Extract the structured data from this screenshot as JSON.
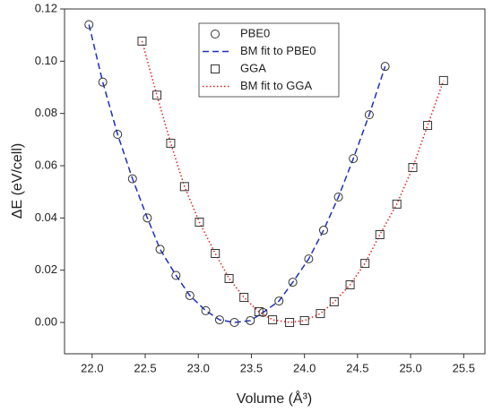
{
  "chart_data": {
    "type": "scatter",
    "xlabel": "Volume (Å³)",
    "ylabel": "ΔE (eV/cell)",
    "xlim": [
      21.74,
      25.7
    ],
    "ylim": [
      -0.012,
      0.12
    ],
    "xticks": [
      {
        "value": 22,
        "label": "22.0"
      },
      22.5,
      {
        "value": 23,
        "label": "23.0"
      },
      23.5,
      {
        "value": 24,
        "label": "24.0"
      },
      24.5,
      {
        "value": 25,
        "label": "25.0"
      },
      25.5
    ],
    "yticks": [
      {
        "value": 0,
        "label": "0.00"
      },
      0.02,
      0.04,
      0.06,
      0.08,
      {
        "value": 0.1,
        "label": "0.10"
      },
      0.12
    ],
    "legend": "top",
    "series": [
      {
        "name": "PBE0",
        "mark": "circle",
        "color": "#333333",
        "x": [
          21.97,
          22.1,
          22.24,
          22.38,
          22.52,
          22.64,
          22.79,
          22.92,
          23.07,
          23.2,
          23.34,
          23.49,
          23.61,
          23.76,
          23.89,
          24.04,
          24.18,
          24.32,
          24.46,
          24.61,
          24.76
        ],
        "values": [
          0.114,
          0.092,
          0.072,
          0.055,
          0.04,
          0.028,
          0.018,
          0.0103,
          0.0045,
          0.001,
          0.0,
          0.0007,
          0.0038,
          0.0082,
          0.0154,
          0.0243,
          0.0353,
          0.048,
          0.0627,
          0.0795,
          0.098
        ]
      },
      {
        "name": "BM fit to PBE0",
        "mark": "dashed",
        "color": "#1f2fbf",
        "x": [
          21.97,
          22.1,
          22.24,
          22.38,
          22.52,
          22.64,
          22.79,
          22.92,
          23.07,
          23.2,
          23.34,
          23.49,
          23.61,
          23.76,
          23.89,
          24.04,
          24.18,
          24.32,
          24.46,
          24.61,
          24.76
        ],
        "values": [
          0.114,
          0.092,
          0.072,
          0.055,
          0.04,
          0.028,
          0.018,
          0.0103,
          0.0045,
          0.001,
          0.0,
          0.0007,
          0.0038,
          0.0082,
          0.0154,
          0.0243,
          0.0353,
          0.048,
          0.0627,
          0.0795,
          0.098
        ]
      },
      {
        "name": "GGA",
        "mark": "square",
        "color": "#333333",
        "x": [
          22.47,
          22.61,
          22.74,
          22.87,
          23.01,
          23.16,
          23.29,
          23.43,
          23.57,
          23.7,
          23.86,
          24.0,
          24.15,
          24.28,
          24.43,
          24.57,
          24.71,
          24.87,
          25.02,
          25.16,
          25.31
        ],
        "values": [
          0.1077,
          0.087,
          0.0686,
          0.052,
          0.0384,
          0.0264,
          0.0168,
          0.0096,
          0.0041,
          0.001,
          0.0,
          0.0007,
          0.0034,
          0.0079,
          0.0144,
          0.0226,
          0.0336,
          0.0453,
          0.0593,
          0.0754,
          0.0926
        ]
      },
      {
        "name": "BM fit to GGA",
        "mark": "dotted",
        "color": "#e0201b",
        "x": [
          22.47,
          22.61,
          22.74,
          22.87,
          23.01,
          23.16,
          23.29,
          23.43,
          23.57,
          23.7,
          23.86,
          24.0,
          24.15,
          24.28,
          24.43,
          24.57,
          24.71,
          24.87,
          25.02,
          25.16,
          25.31
        ],
        "values": [
          0.1077,
          0.087,
          0.0686,
          0.052,
          0.0384,
          0.0264,
          0.0168,
          0.0096,
          0.0041,
          0.001,
          0.0,
          0.0007,
          0.0034,
          0.0079,
          0.0144,
          0.0226,
          0.0336,
          0.0453,
          0.0593,
          0.0754,
          0.0926
        ]
      }
    ]
  }
}
